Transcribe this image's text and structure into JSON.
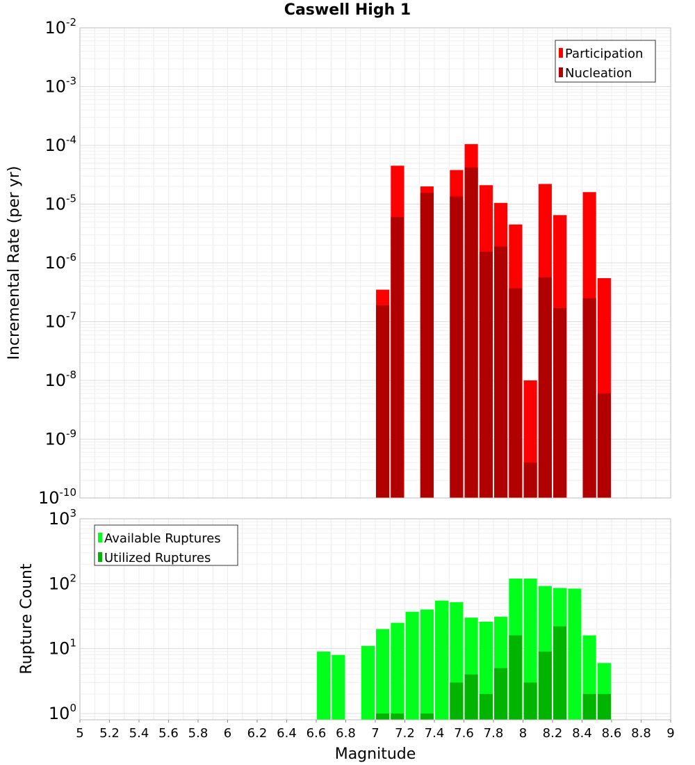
{
  "figure": {
    "title": "Caswell High 1"
  },
  "chart_data": [
    {
      "type": "bar",
      "title": "Caswell High 1",
      "xlabel": "Magnitude",
      "ylabel": "Incremental Rate (per yr)",
      "yscale": "log",
      "ylim": [
        1e-10,
        0.01
      ],
      "xlim": [
        5,
        9
      ],
      "y_tick_exponents": [
        "-10",
        "-9",
        "-8",
        "-7",
        "-6",
        "-5",
        "-4",
        "-3",
        "-2"
      ],
      "legend": {
        "placement": "top-right",
        "entries": [
          "Participation",
          "Nucleation"
        ]
      },
      "grid": true,
      "colors": {
        "Participation": "#ff0000",
        "Nucleation": "#b00000"
      },
      "x": [
        7.05,
        7.15,
        7.35,
        7.55,
        7.65,
        7.75,
        7.85,
        7.95,
        8.05,
        8.15,
        8.25,
        8.45,
        8.55
      ],
      "series": [
        {
          "name": "Participation",
          "values": [
            3.5e-07,
            4.5e-05,
            2e-05,
            3.8e-05,
            0.000105,
            2.1e-05,
            1.05e-05,
            4.5e-06,
            1e-08,
            2.2e-05,
            6.5e-06,
            1.6e-05,
            5.5e-07
          ]
        },
        {
          "name": "Nucleation",
          "values": [
            1.9e-07,
            6e-06,
            1.55e-05,
            1.35e-05,
            4.2e-05,
            1.55e-06,
            1.9e-06,
            3.7e-07,
            4e-10,
            5.7e-07,
            1.7e-07,
            2.5e-07,
            6e-09
          ]
        }
      ]
    },
    {
      "type": "bar",
      "title": "",
      "xlabel": "Magnitude",
      "ylabel": "Rupture Count",
      "yscale": "log",
      "ylim": [
        0.8,
        1000
      ],
      "xlim": [
        5,
        9
      ],
      "x_ticks": [
        "5",
        "5.2",
        "5.4",
        "5.6",
        "5.8",
        "6",
        "6.2",
        "6.4",
        "6.6",
        "6.8",
        "7",
        "7.2",
        "7.4",
        "7.6",
        "7.8",
        "8",
        "8.2",
        "8.4",
        "8.6",
        "8.8",
        "9"
      ],
      "y_tick_exponents": [
        "0",
        "1",
        "2",
        "3"
      ],
      "legend": {
        "placement": "top-left",
        "entries": [
          "Available Ruptures",
          "Utilized Ruptures"
        ]
      },
      "grid": true,
      "colors": {
        "Available Ruptures": "#00ff1a",
        "Utilized Ruptures": "#00b400"
      },
      "x": [
        6.65,
        6.75,
        6.95,
        7.05,
        7.15,
        7.25,
        7.35,
        7.45,
        7.55,
        7.65,
        7.75,
        7.85,
        7.95,
        8.05,
        8.15,
        8.25,
        8.35,
        8.45,
        8.55
      ],
      "series": [
        {
          "name": "Available Ruptures",
          "values": [
            9,
            8,
            11,
            20,
            25,
            37,
            40,
            55,
            52,
            30,
            26,
            31,
            120,
            120,
            92,
            86,
            84,
            16,
            6
          ]
        },
        {
          "name": "Utilized Ruptures",
          "values": [
            0,
            0,
            0,
            1,
            1,
            0,
            1,
            0,
            3,
            4,
            2,
            5,
            16,
            3,
            9,
            22,
            0,
            2,
            2
          ]
        }
      ]
    }
  ]
}
